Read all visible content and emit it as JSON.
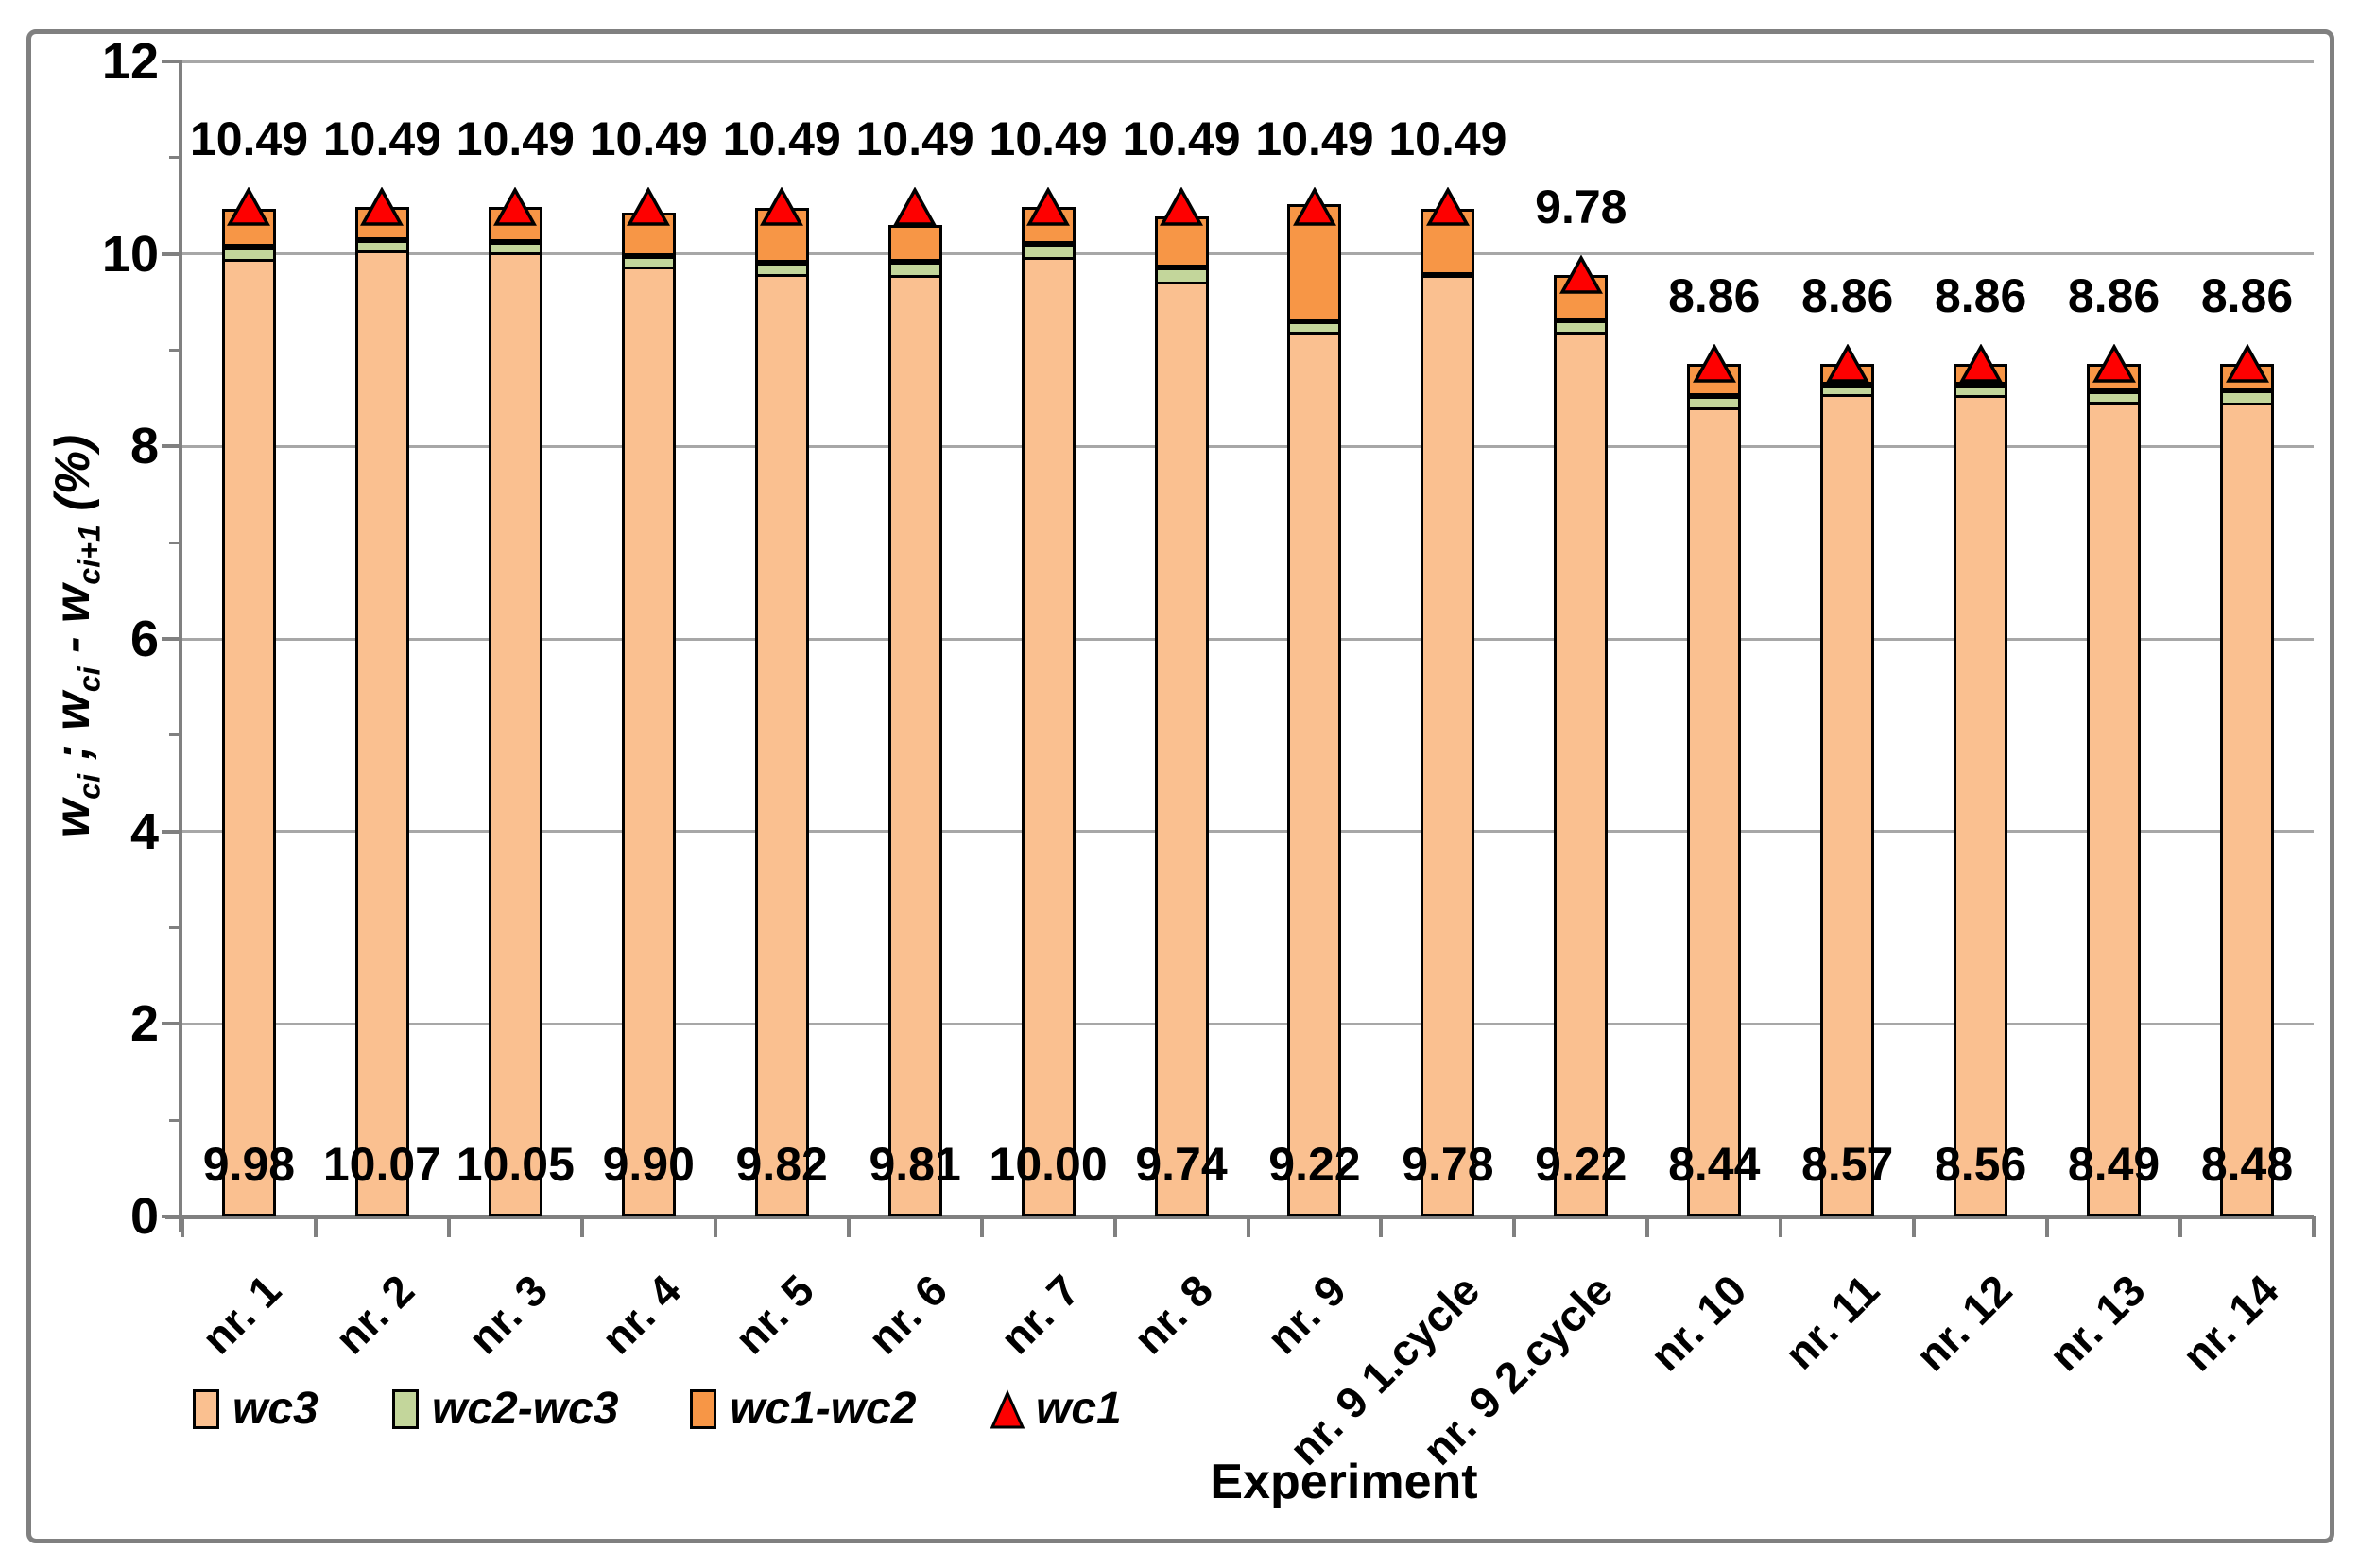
{
  "chart_data": {
    "type": "bar",
    "subtype": "stacked-bars-with-triangle-markers",
    "title": "",
    "xlabel": "Experiment",
    "ylabel_plain": "wci ; wci - wci+1 (%)",
    "ylabel_rich": [
      {
        "t": "w"
      },
      {
        "t": "ci",
        "sub": true
      },
      {
        "t": " ; "
      },
      {
        "t": "w"
      },
      {
        "t": "ci",
        "sub": true
      },
      {
        "t": " - "
      },
      {
        "t": "w"
      },
      {
        "t": "ci+1",
        "sub": true
      },
      {
        "t": " (%)"
      }
    ],
    "ylim": [
      0,
      12
    ],
    "ytick_major": [
      0,
      2,
      4,
      6,
      8,
      10,
      12
    ],
    "ytick_minor": [
      1,
      3,
      5,
      7,
      9,
      11
    ],
    "grid": "horizontal-major-on",
    "legend_position": "bottom-left",
    "legend": [
      {
        "label": "wc3",
        "marker": "box",
        "color": "#FAC090"
      },
      {
        "label": "wc2-wc3",
        "marker": "box",
        "color": "#C3D69B"
      },
      {
        "label": "wc1-wc2",
        "marker": "box",
        "color": "#F79646"
      },
      {
        "label": "wc1",
        "marker": "triangle",
        "color": "#FE0000"
      }
    ],
    "categories": [
      "nr. 1",
      "nr. 2",
      "nr. 3",
      "nr. 4",
      "nr. 5",
      "nr. 6",
      "nr. 7",
      "nr. 8",
      "nr. 9",
      "nr. 9 1.cycle",
      "nr. 9 2.cycle",
      "nr. 10",
      "nr. 11",
      "nr. 12",
      "nr. 13",
      "nr. 14"
    ],
    "bars": [
      {
        "category": "nr. 1",
        "wc3": 9.98,
        "wc2": 10.08,
        "stack_top": 10.47,
        "wc1": 10.49,
        "top_label": "10.49",
        "bottom_label": "9.98"
      },
      {
        "category": "nr. 2",
        "wc3": 10.07,
        "wc2": 10.14,
        "stack_top": 10.49,
        "wc1": 10.49,
        "top_label": "10.49",
        "bottom_label": "10.07"
      },
      {
        "category": "nr. 3",
        "wc3": 10.05,
        "wc2": 10.12,
        "stack_top": 10.49,
        "wc1": 10.49,
        "top_label": "10.49",
        "bottom_label": "10.05"
      },
      {
        "category": "nr. 4",
        "wc3": 9.9,
        "wc2": 9.98,
        "stack_top": 10.43,
        "wc1": 10.49,
        "top_label": "10.49",
        "bottom_label": "9.90"
      },
      {
        "category": "nr. 5",
        "wc3": 9.82,
        "wc2": 9.91,
        "stack_top": 10.48,
        "wc1": 10.49,
        "top_label": "10.49",
        "bottom_label": "9.82"
      },
      {
        "category": "nr. 6",
        "wc3": 9.81,
        "wc2": 9.92,
        "stack_top": 10.3,
        "wc1": 10.49,
        "top_label": "10.49",
        "bottom_label": "9.81"
      },
      {
        "category": "nr. 7",
        "wc3": 10.0,
        "wc2": 10.1,
        "stack_top": 10.49,
        "wc1": 10.49,
        "top_label": "10.49",
        "bottom_label": "10.00"
      },
      {
        "category": "nr. 8",
        "wc3": 9.74,
        "wc2": 9.86,
        "stack_top": 10.39,
        "wc1": 10.49,
        "top_label": "10.49",
        "bottom_label": "9.74"
      },
      {
        "category": "nr. 9",
        "wc3": 9.22,
        "wc2": 9.3,
        "stack_top": 10.52,
        "wc1": 10.49,
        "top_label": "10.49",
        "bottom_label": "9.22"
      },
      {
        "category": "nr. 9 1.cycle",
        "wc3": 9.78,
        "wc2": 9.78,
        "stack_top": 10.47,
        "wc1": 10.49,
        "top_label": "10.49",
        "bottom_label": "9.78"
      },
      {
        "category": "nr. 9 2.cycle",
        "wc3": 9.22,
        "wc2": 9.31,
        "stack_top": 9.78,
        "wc1": 9.78,
        "top_label": "9.78",
        "bottom_label": "9.22"
      },
      {
        "category": "nr. 10",
        "wc3": 8.44,
        "wc2": 8.52,
        "stack_top": 8.86,
        "wc1": 8.86,
        "top_label": "8.86",
        "bottom_label": "8.44"
      },
      {
        "category": "nr. 11",
        "wc3": 8.57,
        "wc2": 8.64,
        "stack_top": 8.86,
        "wc1": 8.86,
        "top_label": "8.86",
        "bottom_label": "8.57"
      },
      {
        "category": "nr. 12",
        "wc3": 8.56,
        "wc2": 8.64,
        "stack_top": 8.86,
        "wc1": 8.86,
        "top_label": "8.86",
        "bottom_label": "8.56"
      },
      {
        "category": "nr. 13",
        "wc3": 8.49,
        "wc2": 8.57,
        "stack_top": 8.86,
        "wc1": 8.86,
        "top_label": "8.86",
        "bottom_label": "8.49"
      },
      {
        "category": "nr. 14",
        "wc3": 8.48,
        "wc2": 8.58,
        "stack_top": 8.86,
        "wc1": 8.86,
        "top_label": "8.86",
        "bottom_label": "8.48"
      }
    ]
  },
  "colors": {
    "bar_wc3": "#FAC090",
    "bar_wc2_wc3": "#C3D69B",
    "bar_wc1_wc2": "#F79646",
    "marker_wc1": "#FE0000",
    "bar_border": "#000000",
    "gridline": "#A7A7A7",
    "axis": "#808080",
    "frame_border": "#808080",
    "text": "#000000"
  }
}
